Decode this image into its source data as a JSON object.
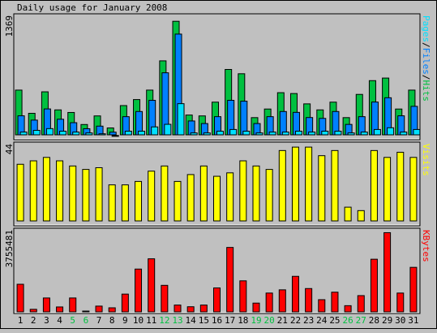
{
  "title": "Daily usage for January 2008",
  "colors": {
    "background": "#c0c0c0",
    "hits": "#00c040",
    "files": "#0080ff",
    "pages": "#00e0ff",
    "visits": "#ffff00",
    "kbytes": "#ff0000",
    "weekend_label": "#00c040",
    "weekday_label": "#000000"
  },
  "chart_data": [
    {
      "type": "bar",
      "name": "hits-files-pages",
      "y_max_label": "1369",
      "ylim": [
        0,
        1369
      ],
      "right_label_parts": [
        {
          "text": "Pages",
          "color": "#00e0ff"
        },
        {
          "text": "/",
          "color": "#000000"
        },
        {
          "text": "Files",
          "color": "#0080ff"
        },
        {
          "text": "/",
          "color": "#000000"
        },
        {
          "text": "Hits",
          "color": "#00c040"
        }
      ],
      "categories": [
        "1",
        "2",
        "3",
        "4",
        "5",
        "6",
        "7",
        "8",
        "9",
        "10",
        "11",
        "12",
        "13",
        "14",
        "15",
        "16",
        "17",
        "18",
        "19",
        "20",
        "21",
        "22",
        "23",
        "24",
        "25",
        "26",
        "27",
        "28",
        "29",
        "30",
        "31"
      ],
      "series": [
        {
          "name": "Hits",
          "color": "#00c040",
          "values": [
            520,
            250,
            500,
            290,
            260,
            120,
            220,
            80,
            340,
            410,
            520,
            860,
            1320,
            230,
            220,
            380,
            760,
            710,
            200,
            300,
            490,
            480,
            360,
            290,
            380,
            200,
            470,
            630,
            660,
            300,
            520
          ]
        },
        {
          "name": "Files",
          "color": "#0080ff",
          "values": [
            240,
            190,
            320,
            200,
            160,
            90,
            120,
            50,
            230,
            290,
            420,
            740,
            1190,
            180,
            150,
            230,
            420,
            410,
            150,
            230,
            290,
            280,
            220,
            210,
            290,
            140,
            230,
            400,
            450,
            240,
            350
          ]
        },
        {
          "name": "Pages",
          "color": "#00e0ff",
          "values": [
            70,
            90,
            110,
            80,
            70,
            60,
            50,
            30,
            80,
            80,
            130,
            160,
            400,
            60,
            60,
            80,
            100,
            80,
            60,
            70,
            70,
            80,
            70,
            80,
            80,
            60,
            70,
            100,
            120,
            70,
            100
          ]
        }
      ]
    },
    {
      "type": "bar",
      "name": "visits",
      "y_max_label": "44",
      "ylim": [
        0,
        44
      ],
      "right_label_parts": [
        {
          "text": "Visits",
          "color": "#ffff00"
        }
      ],
      "categories": [
        "1",
        "2",
        "3",
        "4",
        "5",
        "6",
        "7",
        "8",
        "9",
        "10",
        "11",
        "12",
        "13",
        "14",
        "15",
        "16",
        "17",
        "18",
        "19",
        "20",
        "21",
        "22",
        "23",
        "24",
        "25",
        "26",
        "27",
        "28",
        "29",
        "30",
        "31"
      ],
      "series": [
        {
          "name": "Visits",
          "color": "#ffff00",
          "values": [
            33,
            35,
            37,
            35,
            32,
            30,
            31,
            21,
            21,
            23,
            29,
            32,
            23,
            27,
            32,
            26,
            28,
            35,
            32,
            30,
            41,
            43,
            43,
            38,
            41,
            8,
            6,
            41,
            37,
            40,
            37
          ]
        }
      ]
    },
    {
      "type": "bar",
      "name": "kbytes",
      "y_max_label": "3755481",
      "ylim": [
        0,
        3755481
      ],
      "right_label_parts": [
        {
          "text": "KBytes",
          "color": "#ff0000"
        }
      ],
      "categories": [
        "1",
        "2",
        "3",
        "4",
        "5",
        "6",
        "7",
        "8",
        "9",
        "10",
        "11",
        "12",
        "13",
        "14",
        "15",
        "16",
        "17",
        "18",
        "19",
        "20",
        "21",
        "22",
        "23",
        "24",
        "25",
        "26",
        "27",
        "28",
        "29",
        "30",
        "31"
      ],
      "series": [
        {
          "name": "KBytes",
          "color": "#ff0000",
          "values": [
            1290000,
            120000,
            650000,
            230000,
            650000,
            30000,
            270000,
            190000,
            830000,
            2000000,
            2480000,
            1240000,
            320000,
            240000,
            320000,
            1120000,
            3010000,
            1450000,
            410000,
            880000,
            1030000,
            1660000,
            1090000,
            570000,
            920000,
            290000,
            760000,
            2460000,
            3700000,
            880000,
            2080000
          ]
        }
      ]
    }
  ],
  "x_axis": {
    "days": [
      "1",
      "2",
      "3",
      "4",
      "5",
      "6",
      "7",
      "8",
      "9",
      "10",
      "11",
      "12",
      "13",
      "14",
      "15",
      "16",
      "17",
      "18",
      "19",
      "20",
      "21",
      "22",
      "23",
      "24",
      "25",
      "26",
      "27",
      "28",
      "29",
      "30",
      "31"
    ],
    "weekend_days": [
      "5",
      "6",
      "12",
      "13",
      "19",
      "20",
      "26",
      "27"
    ]
  }
}
